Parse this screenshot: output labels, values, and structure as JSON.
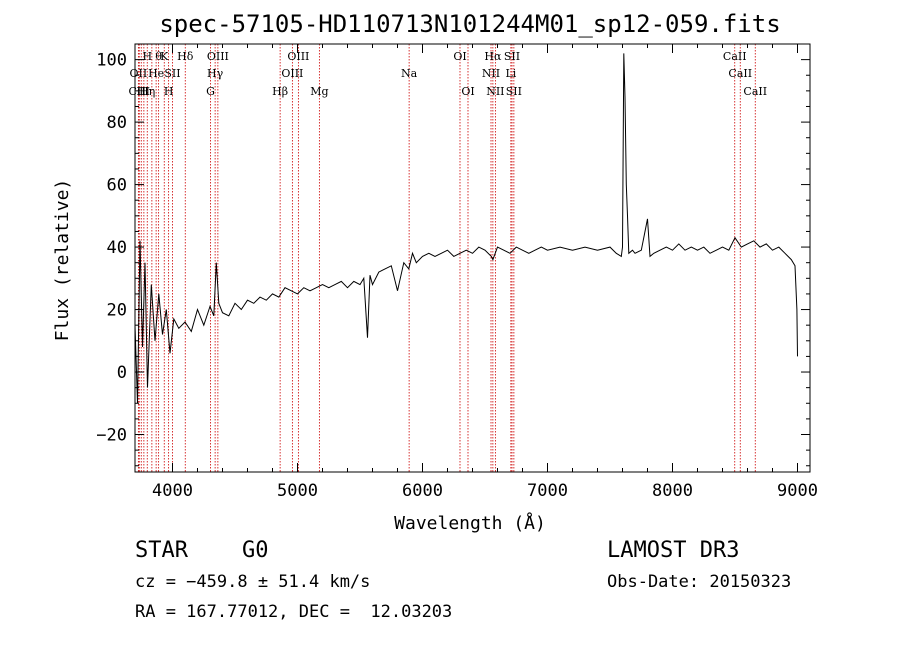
{
  "chart_data": {
    "type": "line",
    "title": "spec-57105-HD110713N101244M01_sp12-059.fits",
    "xlabel": "Wavelength (Å)",
    "ylabel": "Flux (relative)",
    "xlim": [
      3700,
      9100
    ],
    "ylim": [
      -32,
      105
    ],
    "x_ticks": [
      4000,
      5000,
      6000,
      7000,
      8000,
      9000
    ],
    "x_tick_labels": [
      "4000",
      "5000",
      "6000",
      "7000",
      "8000",
      "9000"
    ],
    "y_ticks": [
      -20,
      0,
      20,
      40,
      60,
      80,
      100
    ],
    "y_tick_labels": [
      "−20",
      "0",
      "20",
      "40",
      "60",
      "80",
      "100"
    ],
    "grid": false,
    "series": [
      {
        "name": "",
        "x": [
          3700,
          3720,
          3740,
          3760,
          3780,
          3800,
          3830,
          3860,
          3890,
          3920,
          3950,
          3980,
          4010,
          4050,
          4100,
          4150,
          4200,
          4250,
          4300,
          4330,
          4350,
          4370,
          4400,
          4450,
          4500,
          4550,
          4600,
          4650,
          4700,
          4750,
          4800,
          4850,
          4900,
          4950,
          5000,
          5050,
          5100,
          5150,
          5200,
          5250,
          5300,
          5350,
          5400,
          5450,
          5500,
          5530,
          5560,
          5580,
          5600,
          5650,
          5700,
          5750,
          5800,
          5850,
          5890,
          5920,
          5950,
          6000,
          6050,
          6100,
          6150,
          6200,
          6250,
          6300,
          6350,
          6400,
          6450,
          6500,
          6550,
          6563,
          6600,
          6650,
          6700,
          6750,
          6800,
          6850,
          6900,
          6950,
          7000,
          7100,
          7200,
          7300,
          7400,
          7500,
          7550,
          7590,
          7600,
          7610,
          7620,
          7630,
          7640,
          7650,
          7680,
          7700,
          7750,
          7800,
          7820,
          7850,
          7900,
          7950,
          8000,
          8050,
          8100,
          8150,
          8200,
          8250,
          8300,
          8350,
          8400,
          8450,
          8500,
          8550,
          8600,
          8650,
          8700,
          8750,
          8800,
          8850,
          8900,
          8950,
          8980,
          8995,
          9000
        ],
        "y": [
          15,
          -10,
          42,
          8,
          35,
          -5,
          28,
          10,
          25,
          12,
          20,
          6,
          17,
          14,
          16,
          13,
          20,
          15,
          21,
          18,
          35,
          22,
          19,
          18,
          22,
          20,
          23,
          22,
          24,
          23,
          25,
          24,
          27,
          26,
          25,
          27,
          26,
          27,
          28,
          27,
          28,
          29,
          27,
          29,
          28,
          30,
          11,
          31,
          28,
          32,
          33,
          34,
          26,
          35,
          33,
          38,
          35,
          37,
          38,
          37,
          38,
          39,
          37,
          38,
          39,
          38,
          40,
          39,
          37,
          36,
          40,
          39,
          38,
          40,
          39,
          38,
          39,
          40,
          39,
          40,
          39,
          40,
          39,
          40,
          38,
          37,
          40,
          102,
          88,
          60,
          50,
          38,
          39,
          38,
          39,
          49,
          37,
          38,
          39,
          40,
          39,
          41,
          39,
          40,
          39,
          40,
          38,
          39,
          40,
          39,
          43,
          40,
          41,
          42,
          40,
          41,
          39,
          40,
          38,
          36,
          34,
          20,
          5
        ]
      }
    ],
    "line_labels": [
      {
        "x": 3727,
        "row": 1,
        "text": "OII"
      },
      {
        "x": 3734,
        "row": 2,
        "text": "CIII"
      },
      {
        "x": 3750,
        "row": 2,
        "text": "H"
      },
      {
        "x": 3771,
        "row": 2,
        "text": "H"
      },
      {
        "x": 3798,
        "row": 0,
        "text": "H"
      },
      {
        "x": 3835,
        "row": 2,
        "text": "η"
      },
      {
        "x": 3869,
        "row": 1,
        "text": "He"
      },
      {
        "x": 3889,
        "row": 0,
        "text": "θ"
      },
      {
        "x": 3934,
        "row": 0,
        "text": "K"
      },
      {
        "x": 3969,
        "row": 2,
        "text": "H"
      },
      {
        "x": 4000,
        "row": 1,
        "text": "SII"
      },
      {
        "x": 4102,
        "row": 0,
        "text": "Hδ"
      },
      {
        "x": 4304,
        "row": 2,
        "text": "G"
      },
      {
        "x": 4341,
        "row": 1,
        "text": "Hγ"
      },
      {
        "x": 4363,
        "row": 0,
        "text": "OIII"
      },
      {
        "x": 4861,
        "row": 2,
        "text": "Hβ"
      },
      {
        "x": 4959,
        "row": 1,
        "text": "OIII"
      },
      {
        "x": 5007,
        "row": 0,
        "text": "OIII"
      },
      {
        "x": 5175,
        "row": 2,
        "text": "Mg"
      },
      {
        "x": 5893,
        "row": 1,
        "text": "Na"
      },
      {
        "x": 6300,
        "row": 0,
        "text": "OI"
      },
      {
        "x": 6364,
        "row": 2,
        "text": "OI"
      },
      {
        "x": 6548,
        "row": 1,
        "text": "NII"
      },
      {
        "x": 6563,
        "row": 0,
        "text": "Hα"
      },
      {
        "x": 6583,
        "row": 2,
        "text": "NII"
      },
      {
        "x": 6707,
        "row": 1,
        "text": "Li"
      },
      {
        "x": 6716,
        "row": 0,
        "text": "SII"
      },
      {
        "x": 6731,
        "row": 2,
        "text": "SII"
      },
      {
        "x": 8498,
        "row": 0,
        "text": "CaII"
      },
      {
        "x": 8542,
        "row": 1,
        "text": "CaII"
      },
      {
        "x": 8662,
        "row": 2,
        "text": "CaII"
      }
    ],
    "line_markers": [
      3727,
      3734,
      3750,
      3771,
      3798,
      3835,
      3869,
      3889,
      3934,
      3969,
      4000,
      4102,
      4304,
      4341,
      4363,
      4861,
      4959,
      5007,
      5175,
      5893,
      6300,
      6364,
      6548,
      6563,
      6583,
      6707,
      6716,
      6731,
      8498,
      8542,
      8662
    ]
  },
  "info": {
    "object_class": "STAR",
    "subclass": "G0",
    "survey": "LAMOST DR3",
    "redshift_line": "cz = −459.8 ± 51.4 km/s",
    "obs_date": "Obs-Date: 20150323",
    "coords": "RA = 167.77012, DEC =  12.03203"
  },
  "colors": {
    "axis": "#000000",
    "spectrum": "#000000",
    "line_marker": "#cc0000",
    "background": "#ffffff"
  }
}
